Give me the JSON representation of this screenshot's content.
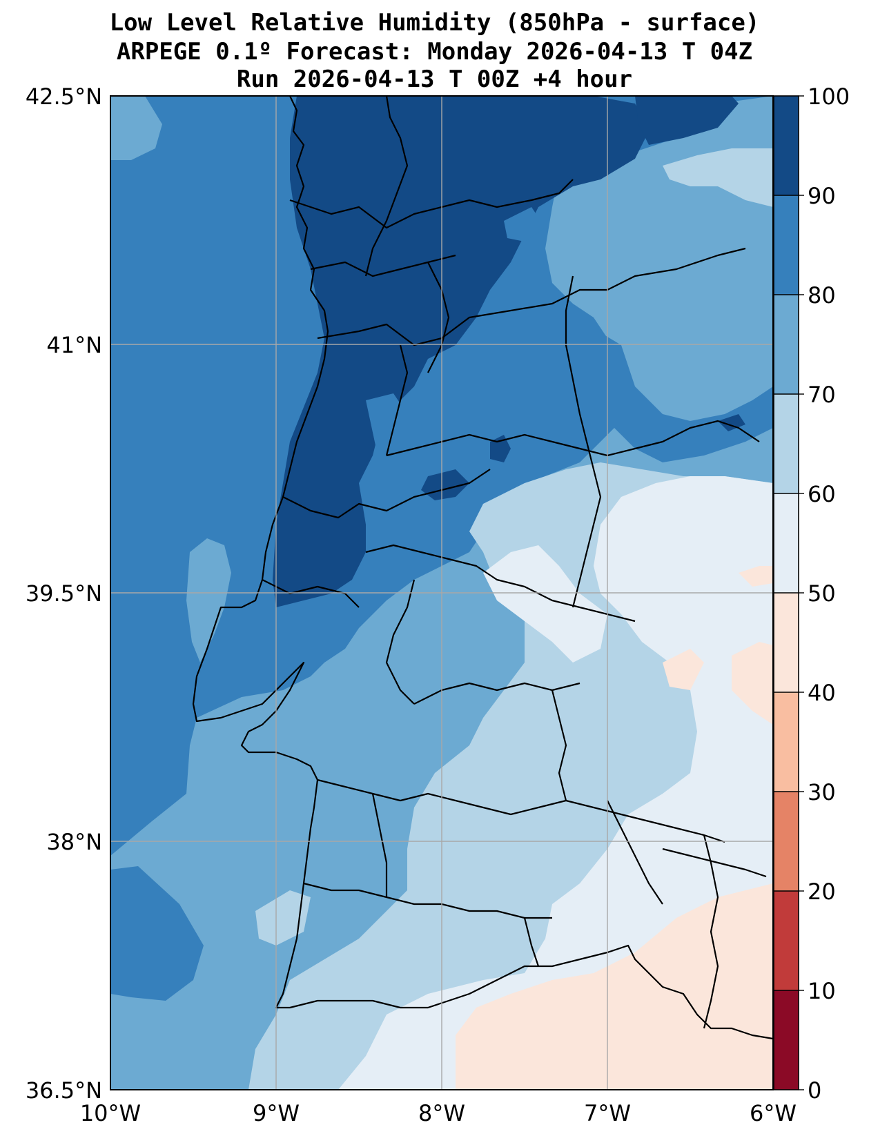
{
  "title": {
    "line1": "Low Level Relative Humidity (850hPa - surface)",
    "line2": "ARPEGE 0.1º Forecast: Monday 2026-04-13 T 04Z",
    "line3": "Run 2026-04-13 T 00Z +4 hour"
  },
  "map": {
    "lat_labels": [
      "42.5°N",
      "41°N",
      "39.5°N",
      "38°N",
      "36.5°N"
    ],
    "lon_labels": [
      "10°W",
      "9°W",
      "8°W",
      "7°W",
      "6°W"
    ],
    "extent": {
      "lon_min": -10,
      "lon_max": -6,
      "lat_min": 36.5,
      "lat_max": 42.5
    }
  },
  "colorbar": {
    "labels": [
      "0",
      "10",
      "20",
      "30",
      "40",
      "50",
      "60",
      "70",
      "80",
      "90",
      "100"
    ],
    "colors": [
      "#8b0a26",
      "#c13b3a",
      "#e58366",
      "#f9bea1",
      "#fbe6db",
      "#e5eef6",
      "#b4d4e7",
      "#6caad2",
      "#3680bc",
      "#134a86"
    ]
  },
  "colors": {
    "rh_90_100": "#134a86",
    "rh_80_90": "#3680bc",
    "rh_70_80": "#6caad2",
    "rh_60_70": "#b4d4e7",
    "rh_50_60": "#e5eef6",
    "rh_40_50": "#fbe6db"
  }
}
